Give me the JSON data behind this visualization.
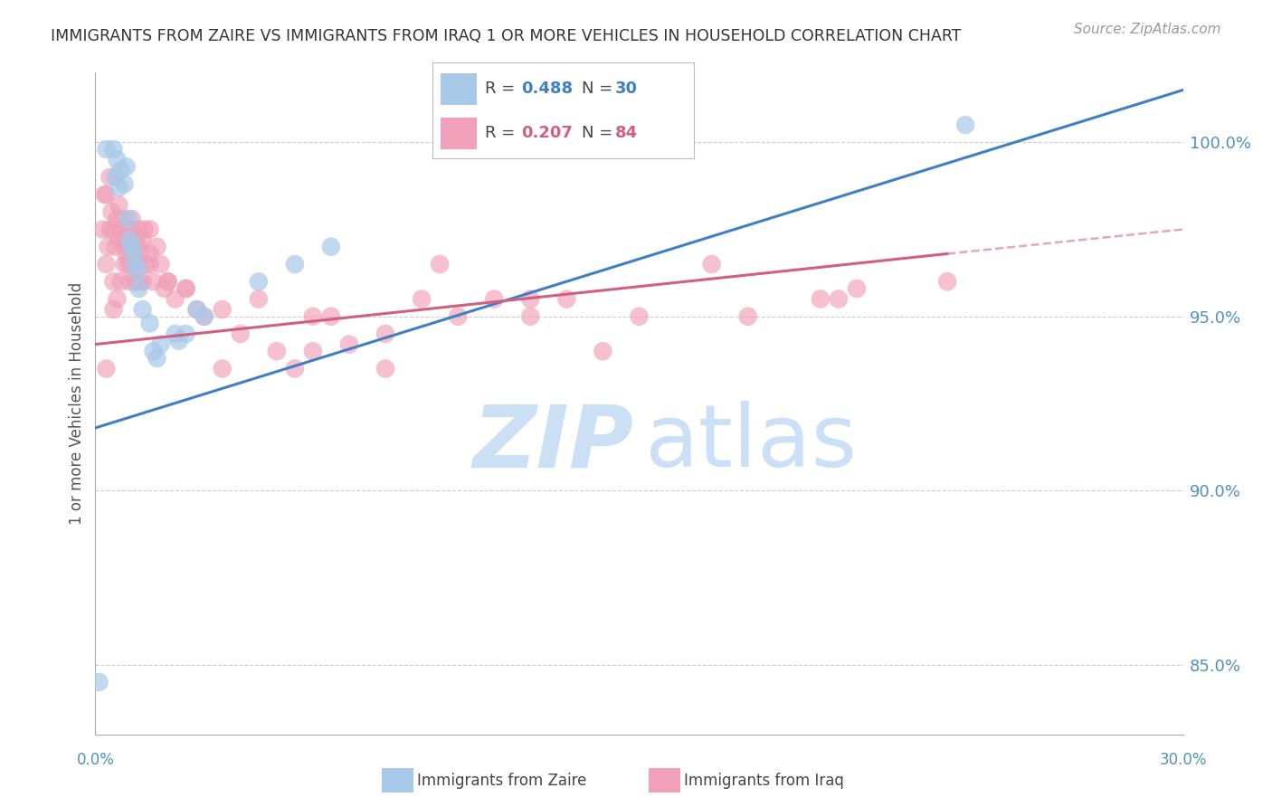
{
  "title": "IMMIGRANTS FROM ZAIRE VS IMMIGRANTS FROM IRAQ 1 OR MORE VEHICLES IN HOUSEHOLD CORRELATION CHART",
  "source": "Source: ZipAtlas.com",
  "ylabel": "1 or more Vehicles in Household",
  "yticks": [
    85.0,
    90.0,
    95.0,
    100.0
  ],
  "xlim": [
    0.0,
    30.0
  ],
  "ylim": [
    83.0,
    102.0
  ],
  "zaire_R": 0.488,
  "zaire_N": 30,
  "iraq_R": 0.207,
  "iraq_N": 84,
  "zaire_color": "#a8c8e8",
  "iraq_color": "#f0a0b8",
  "zaire_line_color": "#4080c0",
  "iraq_line_color": "#d06080",
  "axis_color": "#5090c0",
  "background": "#ffffff",
  "zaire_x": [
    0.3,
    0.5,
    0.6,
    0.7,
    0.8,
    0.85,
    0.9,
    0.95,
    1.0,
    1.05,
    1.1,
    1.15,
    1.2,
    1.3,
    1.5,
    1.6,
    1.7,
    1.8,
    2.5,
    3.0,
    5.5,
    6.5,
    0.1,
    24.0,
    2.2,
    2.3,
    0.55,
    0.65,
    2.8,
    4.5
  ],
  "zaire_y": [
    99.8,
    99.8,
    99.5,
    99.2,
    98.8,
    99.3,
    97.8,
    97.2,
    97.0,
    96.8,
    96.5,
    96.3,
    95.8,
    95.2,
    94.8,
    94.0,
    93.8,
    94.2,
    94.5,
    95.0,
    96.5,
    97.0,
    84.5,
    100.5,
    94.5,
    94.3,
    99.0,
    98.7,
    95.2,
    96.0
  ],
  "iraq_x": [
    0.2,
    0.25,
    0.3,
    0.3,
    0.35,
    0.4,
    0.4,
    0.45,
    0.5,
    0.5,
    0.55,
    0.6,
    0.6,
    0.65,
    0.65,
    0.7,
    0.7,
    0.75,
    0.8,
    0.8,
    0.85,
    0.9,
    0.9,
    0.95,
    1.0,
    1.0,
    1.0,
    1.05,
    1.1,
    1.1,
    1.15,
    1.2,
    1.2,
    1.25,
    1.3,
    1.3,
    1.35,
    1.4,
    1.5,
    1.5,
    1.6,
    1.7,
    1.8,
    1.9,
    2.0,
    2.2,
    2.5,
    2.8,
    3.0,
    3.5,
    4.0,
    5.0,
    5.5,
    6.0,
    6.5,
    7.0,
    8.0,
    9.0,
    9.5,
    10.0,
    11.0,
    12.0,
    13.0,
    14.0,
    17.0,
    18.0,
    20.5,
    21.0,
    23.5,
    0.3,
    0.5,
    0.8,
    1.0,
    1.2,
    1.5,
    2.0,
    2.5,
    3.5,
    4.5,
    6.0,
    8.0,
    12.0,
    15.0,
    20.0
  ],
  "iraq_y": [
    97.5,
    98.5,
    96.5,
    98.5,
    97.0,
    97.5,
    99.0,
    98.0,
    96.0,
    97.5,
    97.0,
    95.5,
    97.8,
    97.2,
    98.2,
    96.0,
    97.5,
    97.8,
    96.5,
    97.0,
    96.8,
    96.5,
    97.5,
    96.0,
    96.5,
    97.0,
    97.8,
    96.8,
    96.0,
    97.2,
    96.5,
    96.0,
    97.5,
    96.8,
    96.0,
    97.2,
    97.5,
    96.5,
    96.8,
    97.5,
    96.0,
    97.0,
    96.5,
    95.8,
    96.0,
    95.5,
    95.8,
    95.2,
    95.0,
    93.5,
    94.5,
    94.0,
    93.5,
    94.0,
    95.0,
    94.2,
    93.5,
    95.5,
    96.5,
    95.0,
    95.5,
    95.0,
    95.5,
    94.0,
    96.5,
    95.0,
    95.5,
    95.8,
    96.0,
    93.5,
    95.2,
    97.2,
    97.5,
    97.0,
    96.5,
    96.0,
    95.8,
    95.2,
    95.5,
    95.0,
    94.5,
    95.5,
    95.0,
    95.5
  ],
  "zaire_trend_x0": 0.0,
  "zaire_trend_x1": 30.0,
  "zaire_trend_y0": 91.8,
  "zaire_trend_y1": 101.5,
  "iraq_trend_x0": 0.0,
  "iraq_trend_x1": 23.5,
  "iraq_trend_y0": 94.2,
  "iraq_trend_y1": 96.8,
  "iraq_dash_x0": 23.5,
  "iraq_dash_x1": 30.0,
  "iraq_dash_y0": 96.8,
  "iraq_dash_y1": 97.5
}
